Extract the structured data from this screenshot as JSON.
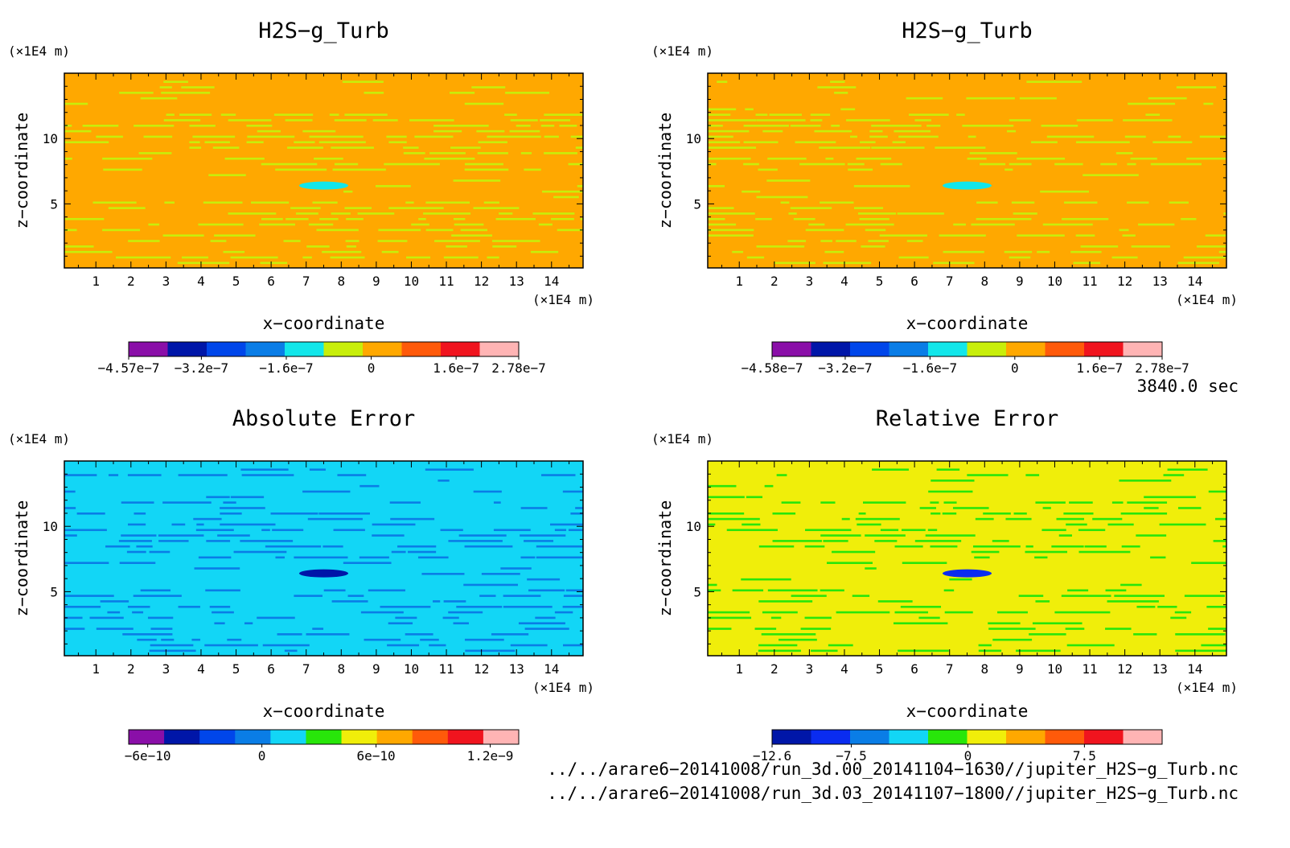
{
  "chart_data": [
    {
      "type": "heatmap",
      "title": "H2S−g_Turb",
      "xlabel": "x−coordinate",
      "ylabel": "z−coordinate",
      "x_unit": "(×1E4 m)",
      "y_unit": "(×1E4 m)",
      "xlim": [
        0.1,
        14.9
      ],
      "ylim": [
        0.1,
        15.0
      ],
      "x_ticks": [
        "1",
        "2",
        "3",
        "4",
        "5",
        "6",
        "7",
        "8",
        "9",
        "10",
        "11",
        "12",
        "13",
        "14"
      ],
      "y_ticks": [
        "5",
        "10"
      ],
      "colorbar": {
        "colors": [
          "#8a0fa8",
          "#0016a8",
          "#0046ea",
          "#0a7de6",
          "#12e6ea",
          "#c8ee0a",
          "#ffa800",
          "#ff5a0a",
          "#f0141e",
          "#ffb4b4"
        ],
        "tick_labels": [
          "−4.57e−7",
          "−3.2e−7",
          "−1.6e−7",
          "0",
          "1.6e−7",
          "2.78e−7"
        ],
        "tick_values": [
          -4.57e-07,
          -3.2e-07,
          -1.6e-07,
          0,
          1.6e-07,
          2.78e-07
        ],
        "range": [
          -4.57e-07,
          2.78e-07
        ]
      },
      "field": {
        "background": "#ffa800",
        "band": "#c8ee0a",
        "spot": "#12e6ea"
      }
    },
    {
      "type": "heatmap",
      "title": "H2S−g_Turb",
      "xlabel": "x−coordinate",
      "ylabel": "z−coordinate",
      "x_unit": "(×1E4 m)",
      "y_unit": "(×1E4 m)",
      "xlim": [
        0.1,
        14.9
      ],
      "ylim": [
        0.1,
        15.0
      ],
      "x_ticks": [
        "1",
        "2",
        "3",
        "4",
        "5",
        "6",
        "7",
        "8",
        "9",
        "10",
        "11",
        "12",
        "13",
        "14"
      ],
      "y_ticks": [
        "5",
        "10"
      ],
      "colorbar": {
        "colors": [
          "#8a0fa8",
          "#0016a8",
          "#0046ea",
          "#0a7de6",
          "#12e6ea",
          "#c8ee0a",
          "#ffa800",
          "#ff5a0a",
          "#f0141e",
          "#ffb4b4"
        ],
        "tick_labels": [
          "−4.58e−7",
          "−3.2e−7",
          "−1.6e−7",
          "0",
          "1.6e−7",
          "2.78e−7"
        ],
        "tick_values": [
          -4.58e-07,
          -3.2e-07,
          -1.6e-07,
          0,
          1.6e-07,
          2.78e-07
        ],
        "range": [
          -4.58e-07,
          2.78e-07
        ]
      },
      "field": {
        "background": "#ffa800",
        "band": "#c8ee0a",
        "spot": "#12e6ea"
      }
    },
    {
      "type": "heatmap",
      "title": "Absolute Error",
      "xlabel": "x−coordinate",
      "ylabel": "z−coordinate",
      "x_unit": "(×1E4 m)",
      "y_unit": "(×1E4 m)",
      "xlim": [
        0.1,
        14.9
      ],
      "ylim": [
        0.1,
        15.0
      ],
      "x_ticks": [
        "1",
        "2",
        "3",
        "4",
        "5",
        "6",
        "7",
        "8",
        "9",
        "10",
        "11",
        "12",
        "13",
        "14"
      ],
      "y_ticks": [
        "5",
        "10"
      ],
      "colorbar": {
        "colors": [
          "#8a0fa8",
          "#0016a8",
          "#0046ea",
          "#0a7de6",
          "#12d6f6",
          "#28e60a",
          "#f0ee0a",
          "#ffa800",
          "#ff5a0a",
          "#f0141e",
          "#ffb4b4"
        ],
        "tick_labels": [
          "−6e−10",
          "0",
          "6e−10",
          "1.2e−9"
        ],
        "tick_values": [
          -6e-10,
          0,
          6e-10,
          1.2e-09
        ],
        "range": [
          -7e-10,
          1.35e-09
        ]
      },
      "field": {
        "background": "#12d6f6",
        "band": "#0a7de6",
        "spot": "#0016a8"
      }
    },
    {
      "type": "heatmap",
      "title": "Relative Error",
      "xlabel": "x−coordinate",
      "ylabel": "z−coordinate",
      "x_unit": "(×1E4 m)",
      "y_unit": "(×1E4 m)",
      "xlim": [
        0.1,
        14.9
      ],
      "ylim": [
        0.1,
        15.0
      ],
      "x_ticks": [
        "1",
        "2",
        "3",
        "4",
        "5",
        "6",
        "7",
        "8",
        "9",
        "10",
        "11",
        "12",
        "13",
        "14"
      ],
      "y_ticks": [
        "5",
        "10"
      ],
      "colorbar": {
        "colors": [
          "#0016a8",
          "#0a2cf0",
          "#0a7de6",
          "#12d6f6",
          "#28e60a",
          "#f0ee0a",
          "#ffa800",
          "#ff5a0a",
          "#f0141e",
          "#ffb4b4"
        ],
        "tick_labels": [
          "−12.6",
          "−7.5",
          "0",
          "7.5"
        ],
        "tick_values": [
          -12.6,
          -7.5,
          0,
          7.5
        ],
        "range": [
          -12.6,
          12.5
        ]
      },
      "field": {
        "background": "#f0ee0a",
        "band": "#28e60a",
        "spot": "#0a2cf0"
      }
    }
  ],
  "time_label": "3840.0 sec",
  "file_paths": [
    "../../arare6−20141008/run_3d.00_20141104−1630//jupiter_H2S−g_Turb.nc",
    "../../arare6−20141008/run_3d.03_20141107−1800//jupiter_H2S−g_Turb.nc"
  ]
}
